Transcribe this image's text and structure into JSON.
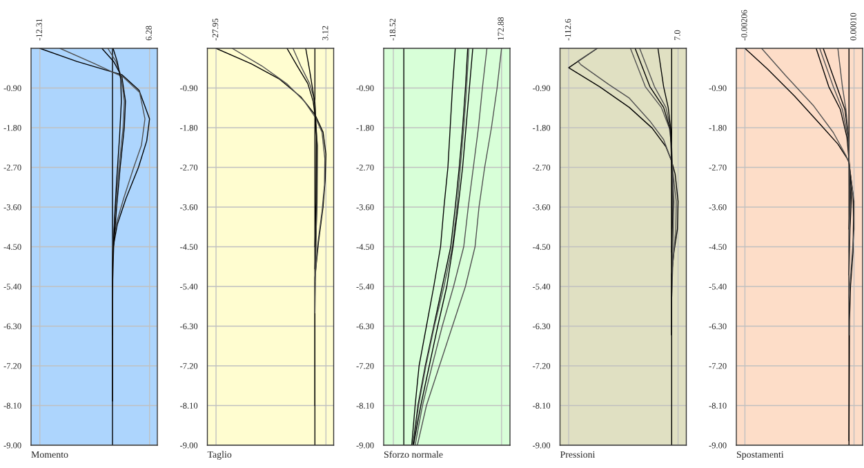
{
  "chart_data": [
    {
      "type": "line",
      "xlabel": "Momento",
      "xlim": [
        -13.8,
        7.6
      ],
      "xticks": [
        {
          "value": -12.31,
          "label": "-12.31"
        },
        {
          "value": 6.28,
          "label": "6.28"
        }
      ],
      "ylim": [
        -9,
        0
      ],
      "yticks": [
        {
          "value": -0.9,
          "label": "-0.90"
        },
        {
          "value": -1.8,
          "label": "-1.80"
        },
        {
          "value": -2.7,
          "label": "-2.70"
        },
        {
          "value": -3.6,
          "label": "-3.60"
        },
        {
          "value": -4.5,
          "label": "-4.50"
        },
        {
          "value": -5.4,
          "label": "-5.40"
        },
        {
          "value": -6.3,
          "label": "-6.30"
        },
        {
          "value": -7.2,
          "label": "-7.20"
        },
        {
          "value": -8.1,
          "label": "-8.10"
        },
        {
          "value": -9.0,
          "label": "-9.00"
        }
      ],
      "grid": true,
      "ref_lines": [
        {
          "axis": "x",
          "value": 0,
          "color": "#000000"
        }
      ],
      "series": [
        {
          "color": "#000000",
          "x": [
            -12.31,
            -6,
            1.6,
            4.5,
            6.28,
            5.8,
            4.4,
            2.3,
            0.8,
            0,
            0
          ],
          "values": [
            0,
            -0.3,
            -0.6,
            -0.95,
            -1.6,
            -2.1,
            -2.7,
            -3.4,
            -4.0,
            -4.6,
            -6.5
          ]
        },
        {
          "color": "#505050",
          "x": [
            -8.9,
            -3,
            1.8,
            4.6,
            5.5,
            4.9,
            3.6,
            1.9,
            0.6,
            0,
            0
          ],
          "values": [
            0,
            -0.35,
            -0.65,
            -1.0,
            -1.6,
            -2.2,
            -2.7,
            -3.4,
            -4.0,
            -4.5,
            -8.0
          ]
        },
        {
          "color": "#000000",
          "x": [
            -1.8,
            0.2,
            1.6,
            2.2,
            2.0,
            1.3,
            0.7,
            0.2,
            0
          ],
          "values": [
            0,
            -0.3,
            -0.65,
            -1.2,
            -1.8,
            -2.7,
            -3.6,
            -4.5,
            -5.4
          ]
        },
        {
          "color": "#505050",
          "x": [
            -0.8,
            0.6,
            1.5,
            2.0,
            1.8,
            1.1,
            0.5,
            0.1,
            0
          ],
          "values": [
            0,
            -0.3,
            -0.65,
            -1.2,
            -1.8,
            -2.7,
            -3.6,
            -4.5,
            -6.3
          ]
        },
        {
          "color": "#000000",
          "x": [
            0.1,
            0.8,
            1.4,
            1.5,
            1.2,
            0.7,
            0.3,
            0,
            0
          ],
          "values": [
            0,
            -0.3,
            -0.7,
            -1.2,
            -2.0,
            -3.0,
            -4.0,
            -5.0,
            -8.0
          ]
        }
      ]
    },
    {
      "type": "line",
      "xlabel": "Taglio",
      "xlim": [
        -30.4,
        5.3
      ],
      "xticks": [
        {
          "value": -27.95,
          "label": "-27.95"
        },
        {
          "value": 3.12,
          "label": "3.12"
        }
      ],
      "ylim": [
        -9,
        0
      ],
      "yticks": [
        {
          "value": -0.9,
          "label": "-0.90"
        },
        {
          "value": -1.8,
          "label": "-1.80"
        },
        {
          "value": -2.7,
          "label": "-2.70"
        },
        {
          "value": -3.6,
          "label": "-3.60"
        },
        {
          "value": -4.5,
          "label": "-4.50"
        },
        {
          "value": -5.4,
          "label": "-5.40"
        },
        {
          "value": -6.3,
          "label": "-6.30"
        },
        {
          "value": -7.2,
          "label": "-7.20"
        },
        {
          "value": -8.1,
          "label": "-8.10"
        },
        {
          "value": -9.0,
          "label": "-9.00"
        }
      ],
      "grid": true,
      "ref_lines": [
        {
          "axis": "x",
          "value": 0,
          "color": "#000000"
        }
      ],
      "series": [
        {
          "color": "#000000",
          "x": [
            -27.95,
            -18,
            -10,
            -4,
            0,
            2.3,
            3.12,
            2.9,
            2.3,
            1.0,
            0,
            0
          ],
          "values": [
            0,
            -0.35,
            -0.7,
            -1.1,
            -1.5,
            -1.9,
            -2.4,
            -3.0,
            -3.6,
            -4.4,
            -5.2,
            -8.1
          ]
        },
        {
          "color": "#505050",
          "x": [
            -23.4,
            -15,
            -8,
            -3,
            0,
            2.0,
            2.8,
            2.7,
            2.0,
            0.7,
            0
          ],
          "values": [
            0,
            -0.4,
            -0.8,
            -1.2,
            -1.55,
            -1.9,
            -2.5,
            -3.1,
            -3.7,
            -4.5,
            -5.3
          ]
        },
        {
          "color": "#000000",
          "x": [
            -7.9,
            -5,
            -2,
            -0.5,
            0,
            0.7,
            0.6,
            0
          ],
          "values": [
            0,
            -0.4,
            -0.8,
            -1.2,
            -1.5,
            -2.2,
            -3.5,
            -5.0
          ]
        },
        {
          "color": "#505050",
          "x": [
            -6.2,
            -4,
            -1.5,
            0,
            0.5,
            0.5,
            0
          ],
          "values": [
            0,
            -0.4,
            -0.8,
            -1.2,
            -2.0,
            -3.5,
            -6.0
          ]
        },
        {
          "color": "#000000",
          "x": [
            -2.6,
            -1.5,
            -0.5,
            0,
            0.4,
            0.3,
            0
          ],
          "values": [
            0,
            -0.5,
            -1.0,
            -1.3,
            -2.0,
            -3.5,
            -4.5
          ]
        }
      ]
    },
    {
      "type": "line",
      "xlabel": "Sforzo normale",
      "xlim": [
        -35.6,
        187.8
      ],
      "xticks": [
        {
          "value": -18.52,
          "label": "-18.52"
        },
        {
          "value": 172.88,
          "label": "172.88"
        }
      ],
      "ylim": [
        -9,
        0
      ],
      "yticks": [
        {
          "value": -0.9,
          "label": "-0.90"
        },
        {
          "value": -1.8,
          "label": "-1.80"
        },
        {
          "value": -2.7,
          "label": "-2.70"
        },
        {
          "value": -3.6,
          "label": "-3.60"
        },
        {
          "value": -4.5,
          "label": "-4.50"
        },
        {
          "value": -5.4,
          "label": "-5.40"
        },
        {
          "value": -6.3,
          "label": "-6.30"
        },
        {
          "value": -7.2,
          "label": "-7.20"
        },
        {
          "value": -8.1,
          "label": "-8.10"
        },
        {
          "value": -9.0,
          "label": "-9.00"
        }
      ],
      "grid": true,
      "ref_lines": [
        {
          "axis": "x",
          "value": 0,
          "color": "#000000"
        }
      ],
      "series": [
        {
          "color": "#000000",
          "x": [
            91,
            86,
            82,
            78,
            71,
            65,
            53,
            40,
            27,
            20,
            14
          ],
          "values": [
            0,
            -0.9,
            -1.8,
            -2.7,
            -3.6,
            -4.5,
            -5.4,
            -6.3,
            -7.2,
            -8.1,
            -9.0
          ]
        },
        {
          "color": "#000000",
          "x": [
            113,
            109,
            104,
            98,
            91,
            83,
            68,
            53,
            38,
            25,
            16
          ],
          "values": [
            0,
            -0.9,
            -1.8,
            -2.7,
            -3.6,
            -4.5,
            -5.4,
            -6.3,
            -7.2,
            -8.1,
            -9.0
          ]
        },
        {
          "color": "#505050",
          "x": [
            115,
            111,
            106,
            100,
            94,
            86,
            71,
            54,
            39,
            26,
            17
          ],
          "values": [
            0,
            -0.9,
            -1.8,
            -2.7,
            -3.6,
            -4.5,
            -5.4,
            -6.3,
            -7.2,
            -8.1,
            -9.0
          ]
        },
        {
          "color": "#000000",
          "x": [
            122,
            116,
            110,
            104,
            96,
            87,
            76,
            60,
            45,
            30,
            17
          ],
          "values": [
            0,
            -0.9,
            -1.8,
            -2.7,
            -3.6,
            -4.5,
            -5.4,
            -6.3,
            -7.2,
            -8.1,
            -9.0
          ]
        },
        {
          "color": "#505050",
          "x": [
            147,
            139,
            132,
            123,
            114,
            106,
            88,
            68,
            50,
            33,
            20
          ],
          "values": [
            0,
            -0.9,
            -1.8,
            -2.7,
            -3.6,
            -4.5,
            -5.4,
            -6.3,
            -7.2,
            -8.1,
            -9.0
          ]
        },
        {
          "color": "#505050",
          "x": [
            172.88,
            165,
            155,
            143,
            133,
            126,
            109,
            86,
            63,
            40,
            24,
            0
          ],
          "values": [
            0,
            -0.9,
            -1.8,
            -2.7,
            -3.6,
            -4.5,
            -5.4,
            -6.3,
            -7.2,
            -8.1,
            -9.0,
            -9.0
          ]
        }
      ]
    },
    {
      "type": "line",
      "xlabel": "Pressioni",
      "xlim": [
        -122.1,
        16.0
      ],
      "xticks": [
        {
          "value": -112.6,
          "label": "-112.6"
        },
        {
          "value": 7.0,
          "label": "7.0"
        }
      ],
      "ylim": [
        -9,
        0
      ],
      "yticks": [
        {
          "value": -0.9,
          "label": "-0.90"
        },
        {
          "value": -1.8,
          "label": "-1.80"
        },
        {
          "value": -2.7,
          "label": "-2.70"
        },
        {
          "value": -3.6,
          "label": "-3.60"
        },
        {
          "value": -4.5,
          "label": "-4.50"
        },
        {
          "value": -5.4,
          "label": "-5.40"
        },
        {
          "value": -6.3,
          "label": "-6.30"
        },
        {
          "value": -7.2,
          "label": "-7.20"
        },
        {
          "value": -8.1,
          "label": "-8.10"
        },
        {
          "value": -9.0,
          "label": "-9.00"
        }
      ],
      "grid": true,
      "ref_lines": [
        {
          "axis": "x",
          "value": 0,
          "color": "#000000"
        }
      ],
      "series": [
        {
          "color": "#000000",
          "x": [
            -81.3,
            -112.6,
            -78.8,
            -46.3,
            -21.3,
            -6.3,
            0,
            3.8,
            7.0,
            6.3,
            2.5,
            0,
            0
          ],
          "values": [
            0,
            -0.44,
            -0.87,
            -1.34,
            -1.81,
            -2.23,
            -2.56,
            -2.85,
            -3.47,
            -4.1,
            -4.62,
            -5.13,
            -6.5
          ]
        },
        {
          "color": "#505050",
          "x": [
            -81.3,
            -102.6,
            -99.4,
            -68.8,
            -46.3,
            -23.8,
            -8.8,
            0,
            5.0,
            4.5,
            1.3,
            0,
            0
          ],
          "values": [
            0,
            -0.29,
            -0.37,
            -0.82,
            -1.13,
            -1.65,
            -2.07,
            -2.56,
            -3.47,
            -4.1,
            -4.88,
            -5.66,
            -6.5
          ]
        },
        {
          "color": "#505050",
          "x": [
            -45.1,
            -28.8,
            -11.3,
            -2.5,
            0,
            2.5,
            0
          ],
          "values": [
            0,
            -0.87,
            -1.34,
            -1.81,
            -2.23,
            -3.47,
            -5.66
          ]
        },
        {
          "color": "#000000",
          "x": [
            -40.0,
            -23.8,
            -8.8,
            -1.3,
            1.3,
            0
          ],
          "values": [
            0,
            -0.87,
            -1.34,
            -1.86,
            -3.47,
            -4.62
          ]
        },
        {
          "color": "#505050",
          "x": [
            -35.0,
            -18.8,
            -6.3,
            -0.8,
            0.8,
            0
          ],
          "values": [
            0,
            -0.87,
            -1.34,
            -1.86,
            -3.06,
            -4.1
          ]
        },
        {
          "color": "#000000",
          "x": [
            -15.0,
            -8.8,
            -3.8,
            -0.8,
            0,
            0
          ],
          "values": [
            0,
            -0.87,
            -1.34,
            -1.86,
            -2.54,
            -6.5
          ]
        }
      ]
    },
    {
      "type": "line",
      "xlabel": "Spostamenti",
      "xlim": [
        -0.00223,
        0.00027
      ],
      "xticks": [
        {
          "value": -0.00206,
          "label": "-0.00206"
        },
        {
          "value": 0.0001,
          "label": "0.00010"
        }
      ],
      "ylim": [
        -9,
        0
      ],
      "yticks": [
        {
          "value": -0.9,
          "label": "-0.90"
        },
        {
          "value": -1.8,
          "label": "-1.80"
        },
        {
          "value": -2.7,
          "label": "-2.70"
        },
        {
          "value": -3.6,
          "label": "-3.60"
        },
        {
          "value": -4.5,
          "label": "-4.50"
        },
        {
          "value": -5.4,
          "label": "-5.40"
        },
        {
          "value": -6.3,
          "label": "-6.30"
        },
        {
          "value": -7.2,
          "label": "-7.20"
        },
        {
          "value": -8.1,
          "label": "-8.10"
        },
        {
          "value": -9.0,
          "label": "-9.00"
        }
      ],
      "grid": true,
      "ref_lines": [
        {
          "axis": "x",
          "value": 0,
          "color": "#000000"
        }
      ],
      "series": [
        {
          "color": "#000000",
          "x": [
            -0.00206,
            -0.00162,
            -0.00108,
            -0.00058,
            -0.00022,
            -4e-05,
            0,
            8e-05,
            9e-05,
            8e-05,
            3e-05,
            1e-05,
            0
          ],
          "values": [
            0,
            -0.46,
            -1.08,
            -1.71,
            -2.17,
            -2.49,
            -2.59,
            -3.32,
            -3.84,
            -4.62,
            -5.4,
            -6.18,
            -8.9
          ]
        },
        {
          "color": "#505050",
          "x": [
            -0.00173,
            -0.00126,
            -0.00071,
            -0.00031,
            -6e-05,
            0,
            0.0001,
            0.0001,
            5e-05,
            0
          ],
          "values": [
            0,
            -0.61,
            -1.29,
            -1.91,
            -2.43,
            -2.59,
            -3.47,
            -4.1,
            -4.88,
            -5.66
          ]
        },
        {
          "color": "#000000",
          "x": [
            -0.00065,
            -0.0004,
            -0.00017,
            -4e-05,
            0,
            5e-05,
            2e-05,
            0
          ],
          "values": [
            0,
            -0.87,
            -1.39,
            -2.02,
            -2.54,
            -3.32,
            -4.1,
            -5.14
          ]
        },
        {
          "color": "#505050",
          "x": [
            -0.00058,
            -0.00031,
            -0.00013,
            -2e-05,
            3e-05,
            0,
            0
          ],
          "values": [
            0,
            -0.87,
            -1.39,
            -2.02,
            -3.32,
            -4.62,
            -6.5
          ]
        },
        {
          "color": "#000000",
          "x": [
            -0.00051,
            -0.00024,
            -8e-05,
            -1e-05,
            2e-05,
            0
          ],
          "values": [
            0,
            -0.87,
            -1.39,
            -2.02,
            -3.32,
            -4.1
          ]
        },
        {
          "color": "#505050",
          "x": [
            -0.00022,
            -0.00013,
            -6e-05,
            -1e-05,
            0,
            1e-05,
            0
          ],
          "values": [
            0,
            -0.87,
            -1.39,
            -2.02,
            -2.54,
            -3.6,
            -4.62
          ]
        }
      ]
    }
  ]
}
